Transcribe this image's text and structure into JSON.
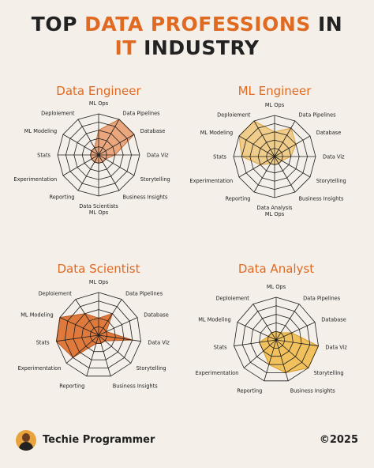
{
  "title": {
    "line1_prefix": "TOP ",
    "line1_accent": "DATA PROFESSIONS",
    "line1_suffix": " IN",
    "line2_accent": "IT",
    "line2_suffix": " INDUSTRY"
  },
  "colors": {
    "accent": "#e06a22",
    "text": "#222222",
    "background": "#f4efe8",
    "grid": "#1e1e1e"
  },
  "footer": {
    "brand": "Techie Programmer",
    "year": "©2025"
  },
  "chart_data": [
    {
      "type": "radar",
      "title": "Data Engineer",
      "axes": [
        "ML Ops",
        "Data Pipelines",
        "Database",
        "Data Viz",
        "Storytelling",
        "Business Insights",
        "Data Scientists\nML Ops",
        "Reporting",
        "Experimentation",
        "Stats",
        "ML Modeling",
        "Deploiement"
      ],
      "values": [
        3,
        5,
        5,
        2,
        1,
        1,
        1,
        1,
        1,
        1,
        1,
        1
      ],
      "max": 5,
      "fill": "#eaa77e",
      "stroke": "#c8703f"
    },
    {
      "type": "radar",
      "title": "ML Engineer",
      "axes": [
        "ML Ops",
        "Data Pipelines",
        "Database",
        "Data Viz",
        "Storytelling",
        "Business Insights",
        "Data Analysis\nML Ops",
        "Reporting",
        "Experimentation",
        "Stats",
        "ML Modeling",
        "Deploiement"
      ],
      "values": [
        3,
        4,
        3,
        2,
        1,
        1,
        1,
        1,
        2,
        4,
        5,
        5
      ],
      "max": 5,
      "fill": "#f0cd8a",
      "stroke": "#d9a545"
    },
    {
      "type": "radar",
      "title": "Data Scientist",
      "axes": [
        "ML Ops",
        "Data Pipelines",
        "Database",
        "Data Viz",
        "Storytelling",
        "Business Insights",
        "Reporting",
        "Experimentation",
        "Stats",
        "ML Modeling",
        "Deploiement"
      ],
      "values": [
        2,
        3,
        1,
        4,
        1,
        1,
        1,
        4,
        5,
        5,
        3
      ],
      "max": 5,
      "fill": "#e07a3c",
      "stroke": "#b85a25"
    },
    {
      "type": "radar",
      "title": "Data Analyst",
      "axes": [
        "ML Ops",
        "Data Pipelines",
        "Database",
        "Data Viz",
        "Storytelling",
        "Business Insights",
        "Reporting",
        "Experimentation",
        "Stats",
        "ML Modeling",
        "Deploiement"
      ],
      "values": [
        1,
        1,
        2,
        5,
        5,
        4,
        3,
        2,
        2,
        1,
        1
      ],
      "max": 5,
      "fill": "#f1c15d",
      "stroke": "#d99a25"
    }
  ]
}
